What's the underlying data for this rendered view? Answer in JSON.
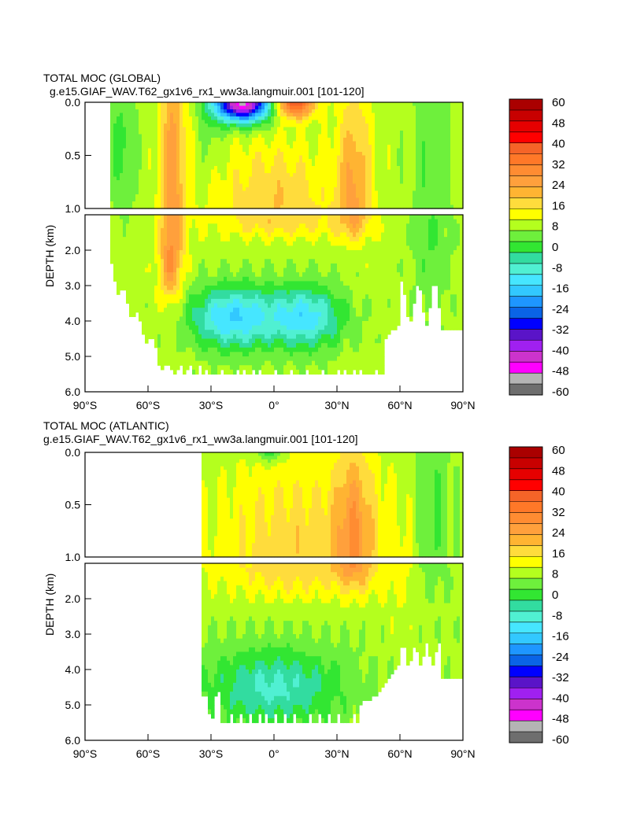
{
  "chart_data": [
    {
      "type": "heatmap",
      "title": "TOTAL MOC (GLOBAL)",
      "subtitle": "g.e15.GIAF_WAV.T62_gx1v6_rx1_ww3a.langmuir.001  [101-120]",
      "xlabel": "",
      "ylabel": "DEPTH (km)",
      "x_ticks": [
        "90°S",
        "60°S",
        "30°S",
        "0°",
        "30°N",
        "60°N",
        "90°N"
      ],
      "y_ticks_upper": [
        "0.0",
        "0.5",
        "1.0"
      ],
      "y_ticks_lower": [
        "2.0",
        "3.0",
        "4.0",
        "5.0",
        "6.0"
      ],
      "xlim": [
        -90,
        90
      ],
      "ylim": [
        6.0,
        0.0
      ],
      "depth_break_km": 1.0,
      "colorbar_ticks": [
        "60",
        "48",
        "40",
        "32",
        "24",
        "16",
        "8",
        "0",
        "-8",
        "-16",
        "-24",
        "-32",
        "-40",
        "-48",
        "-60"
      ],
      "features": [
        {
          "lat": -48,
          "depth": 0.5,
          "value": 24
        },
        {
          "lat": -15,
          "depth": 0.05,
          "value": -48
        },
        {
          "lat": 12,
          "depth": 0.05,
          "value": 32
        },
        {
          "lat": 38,
          "depth": 0.8,
          "value": 24
        },
        {
          "lat": 0,
          "depth": 0.8,
          "value": 16
        },
        {
          "lat": -20,
          "depth": 3.9,
          "value": -16
        },
        {
          "lat": 15,
          "depth": 3.9,
          "value": -16
        }
      ]
    },
    {
      "type": "heatmap",
      "title": "TOTAL MOC (ATLANTIC)",
      "subtitle": "g.e15.GIAF_WAV.T62_gx1v6_rx1_ww3a.langmuir.001  [101-120]",
      "xlabel": "",
      "ylabel": "DEPTH (km)",
      "x_ticks": [
        "90°S",
        "60°S",
        "30°S",
        "0°",
        "30°N",
        "60°N",
        "90°N"
      ],
      "y_ticks_upper": [
        "0.0",
        "0.5",
        "1.0"
      ],
      "y_ticks_lower": [
        "2.0",
        "3.0",
        "4.0",
        "5.0",
        "6.0"
      ],
      "xlim": [
        -90,
        90
      ],
      "ylim": [
        6.0,
        0.0
      ],
      "depth_break_km": 1.0,
      "colorbar_ticks": [
        "60",
        "48",
        "40",
        "32",
        "24",
        "16",
        "8",
        "0",
        "-8",
        "-16",
        "-24",
        "-32",
        "-40",
        "-48",
        "-60"
      ],
      "features": [
        {
          "lat": 38,
          "depth": 0.8,
          "value": 24
        },
        {
          "lat": 10,
          "depth": 0.8,
          "value": 16
        },
        {
          "lat": 10,
          "depth": 1.6,
          "value": 16
        },
        {
          "lat": 0,
          "depth": 4.5,
          "value": -8
        }
      ]
    }
  ],
  "colors": {
    "levels": [
      "#6e6e6e",
      "#b4b4b4",
      "#ff00ff",
      "#cc33cc",
      "#a020f0",
      "#5a14c8",
      "#0000ff",
      "#0a64e6",
      "#1e96ff",
      "#32c8ff",
      "#46e6ff",
      "#50f0d2",
      "#32dca0",
      "#32e632",
      "#6ef03c",
      "#b4ff1e",
      "#ffff00",
      "#ffdc3c",
      "#ffb432",
      "#ffa03c",
      "#ff8c32",
      "#ff7828",
      "#f56428",
      "#ff0000",
      "#e60000",
      "#c80000",
      "#aa0000"
    ],
    "axis": "#000000"
  }
}
